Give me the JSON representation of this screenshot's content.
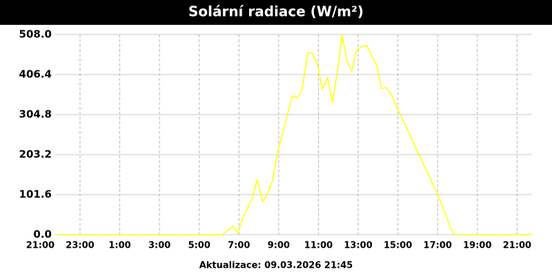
{
  "chart_data": {
    "type": "line",
    "title": "Solární radiace (W/m²)",
    "footer": "Aktualizace: 09.03.2026 21:45",
    "x": [
      0.75,
      9.15,
      9.71,
      9.95,
      10.19,
      10.68,
      10.92,
      11.17,
      11.41,
      11.69,
      11.93,
      12.17,
      12.42,
      12.69,
      12.94,
      13.18,
      13.46,
      13.7,
      13.94,
      14.19,
      14.46,
      14.71,
      14.95,
      15.19,
      15.44,
      15.68,
      15.92,
      16.2,
      16.44,
      16.69,
      16.93,
      17.17,
      17.42,
      17.69,
      17.94,
      18.22,
      18.81,
      19.4,
      19.99,
      20.4,
      20.65,
      20.82,
      20.89,
      24.74
    ],
    "series": [
      {
        "name": "Solární radiace",
        "color": "#ffff00",
        "values": [
          0,
          0,
          21,
          3.5,
          42,
          93,
          140,
          84,
          100,
          137,
          207,
          252,
          301,
          352,
          347,
          368,
          461,
          461,
          433,
          370,
          398,
          335,
          413,
          508,
          440,
          415,
          468,
          478,
          480,
          452,
          431,
          371,
          373,
          354,
          324,
          294,
          231,
          166,
          103,
          53,
          16,
          2,
          0,
          0
        ]
      }
    ],
    "xlim": [
      0.75,
      24.75
    ],
    "xticks": [
      {
        "value": 0,
        "label": "21:00"
      },
      {
        "value": 2,
        "label": "23:00"
      },
      {
        "value": 4,
        "label": "1:00"
      },
      {
        "value": 6,
        "label": "3:00"
      },
      {
        "value": 8,
        "label": "5:00"
      },
      {
        "value": 10,
        "label": "7:00"
      },
      {
        "value": 12,
        "label": "9:00"
      },
      {
        "value": 14,
        "label": "11:00"
      },
      {
        "value": 16,
        "label": "13:00"
      },
      {
        "value": 18,
        "label": "15:00"
      },
      {
        "value": 20,
        "label": "17:00"
      },
      {
        "value": 22,
        "label": "19:00"
      },
      {
        "value": 24,
        "label": "21:00"
      }
    ],
    "ylim": [
      0,
      508
    ],
    "yticks": [
      {
        "value": 0,
        "label": "0.0"
      },
      101.6,
      203.2,
      304.8,
      406.4,
      {
        "value": 508,
        "label": "508.0"
      }
    ],
    "grid": true
  }
}
